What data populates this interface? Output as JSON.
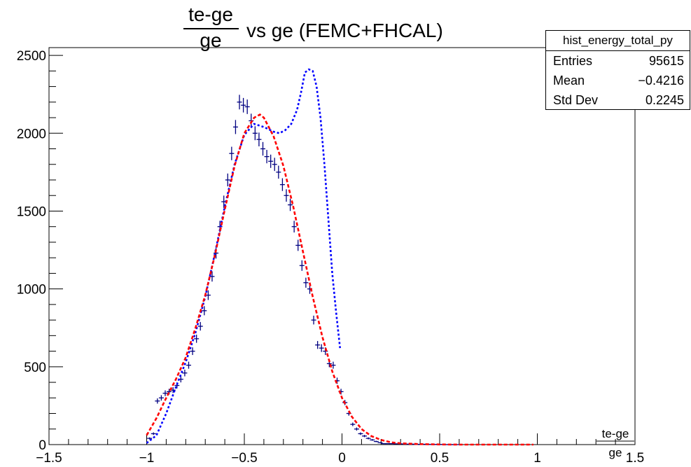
{
  "chart_data": {
    "type": "histogram",
    "title": {
      "numerator": "te-ge",
      "denominator": "ge",
      "suffix": "vs ge (FEMC+FHCAL)"
    },
    "xlabel": {
      "numerator": "te-ge",
      "denominator": "ge"
    },
    "ylabel": "",
    "xlim": [
      -1.5,
      1.5
    ],
    "ylim": [
      0,
      2550
    ],
    "x_ticks": [
      -1.5,
      -1,
      -0.5,
      0,
      0.5,
      1,
      1.5
    ],
    "x_tick_labels": [
      "−1.5",
      "−1",
      "−0.5",
      "0",
      "0.5",
      "1",
      "1.5"
    ],
    "y_ticks": [
      0,
      500,
      1000,
      1500,
      2000,
      2500
    ],
    "y_tick_labels": [
      "0",
      "500",
      "1000",
      "1500",
      "2000",
      "2500"
    ],
    "grid": false,
    "colors": {
      "data": "#000080",
      "fit_blue": "#0000ff",
      "fit_red": "#ff0000",
      "axis": "#000000"
    },
    "series": [
      {
        "style": "data points with error bars",
        "color": "#000080",
        "x": [
          -0.985,
          -0.965,
          -0.945,
          -0.925,
          -0.905,
          -0.885,
          -0.865,
          -0.845,
          -0.825,
          -0.805,
          -0.785,
          -0.765,
          -0.745,
          -0.725,
          -0.705,
          -0.685,
          -0.665,
          -0.645,
          -0.625,
          -0.605,
          -0.585,
          -0.565,
          -0.545,
          -0.525,
          -0.505,
          -0.485,
          -0.465,
          -0.445,
          -0.425,
          -0.405,
          -0.385,
          -0.365,
          -0.345,
          -0.325,
          -0.305,
          -0.285,
          -0.265,
          -0.245,
          -0.225,
          -0.205,
          -0.185,
          -0.165,
          -0.145,
          -0.125,
          -0.105,
          -0.085,
          -0.065,
          -0.045,
          -0.025,
          -0.005,
          0.015,
          0.035,
          0.055,
          0.075,
          0.095,
          0.115,
          0.135,
          0.155,
          0.175,
          0.195,
          0.215,
          0.235,
          0.255,
          0.275,
          0.295,
          0.315,
          0.335,
          0.355,
          0.375,
          0.395,
          0.415,
          0.435,
          0.455,
          0.475,
          0.495,
          0.515,
          0.535,
          0.555,
          0.575,
          0.595
        ],
        "y": [
          40,
          70,
          280,
          300,
          330,
          340,
          350,
          380,
          420,
          460,
          510,
          600,
          680,
          760,
          860,
          960,
          1080,
          1230,
          1400,
          1560,
          1700,
          1870,
          2040,
          2200,
          2180,
          2170,
          2080,
          2000,
          1960,
          1900,
          1850,
          1820,
          1800,
          1750,
          1670,
          1600,
          1540,
          1400,
          1280,
          1150,
          1040,
          1000,
          800,
          640,
          620,
          600,
          520,
          510,
          410,
          340,
          270,
          200,
          130,
          100,
          70,
          55,
          40,
          30,
          20,
          12,
          6,
          6,
          6,
          5,
          5,
          4,
          3,
          3,
          2,
          2,
          2,
          2,
          1,
          1,
          1,
          1,
          0,
          0,
          0,
          0
        ]
      },
      {
        "style": "dotted fit",
        "color": "#0000ff",
        "x": [
          -1,
          -0.95,
          -0.9,
          -0.85,
          -0.8,
          -0.75,
          -0.7,
          -0.65,
          -0.6,
          -0.55,
          -0.5,
          -0.45,
          -0.4,
          -0.35,
          -0.32,
          -0.29,
          -0.26,
          -0.23,
          -0.21,
          -0.19,
          -0.17,
          -0.15,
          -0.13,
          -0.11,
          -0.09,
          -0.07,
          -0.05,
          -0.03,
          -0.01
        ],
        "y": [
          10,
          60,
          200,
          370,
          530,
          720,
          950,
          1230,
          1530,
          1800,
          1990,
          2060,
          2040,
          2010,
          2000,
          2020,
          2060,
          2150,
          2260,
          2390,
          2410,
          2400,
          2300,
          2100,
          1800,
          1450,
          1100,
          850,
          620
        ]
      },
      {
        "style": "dashed fit",
        "color": "#ff0000",
        "x": [
          -1,
          -0.95,
          -0.9,
          -0.85,
          -0.8,
          -0.75,
          -0.7,
          -0.65,
          -0.6,
          -0.55,
          -0.5,
          -0.45,
          -0.42,
          -0.4,
          -0.35,
          -0.3,
          -0.25,
          -0.2,
          -0.15,
          -0.1,
          -0.05,
          0,
          0.05,
          0.1,
          0.15,
          0.2,
          0.25,
          0.3,
          0.4,
          0.5,
          0.6,
          0.7,
          0.8,
          0.9,
          0.98
        ],
        "y": [
          60,
          170,
          300,
          420,
          560,
          750,
          960,
          1220,
          1510,
          1790,
          2000,
          2100,
          2120,
          2100,
          1980,
          1790,
          1530,
          1240,
          950,
          690,
          470,
          300,
          180,
          100,
          55,
          30,
          15,
          8,
          3,
          1,
          0,
          0,
          0,
          0,
          0
        ]
      }
    ]
  },
  "stats_box": {
    "name": "hist_energy_total_py",
    "rows": [
      {
        "key": "Entries",
        "value": "95615"
      },
      {
        "key": "Mean",
        "value": "−0.4216"
      },
      {
        "key": "Std Dev",
        "value": "0.2245"
      }
    ]
  }
}
